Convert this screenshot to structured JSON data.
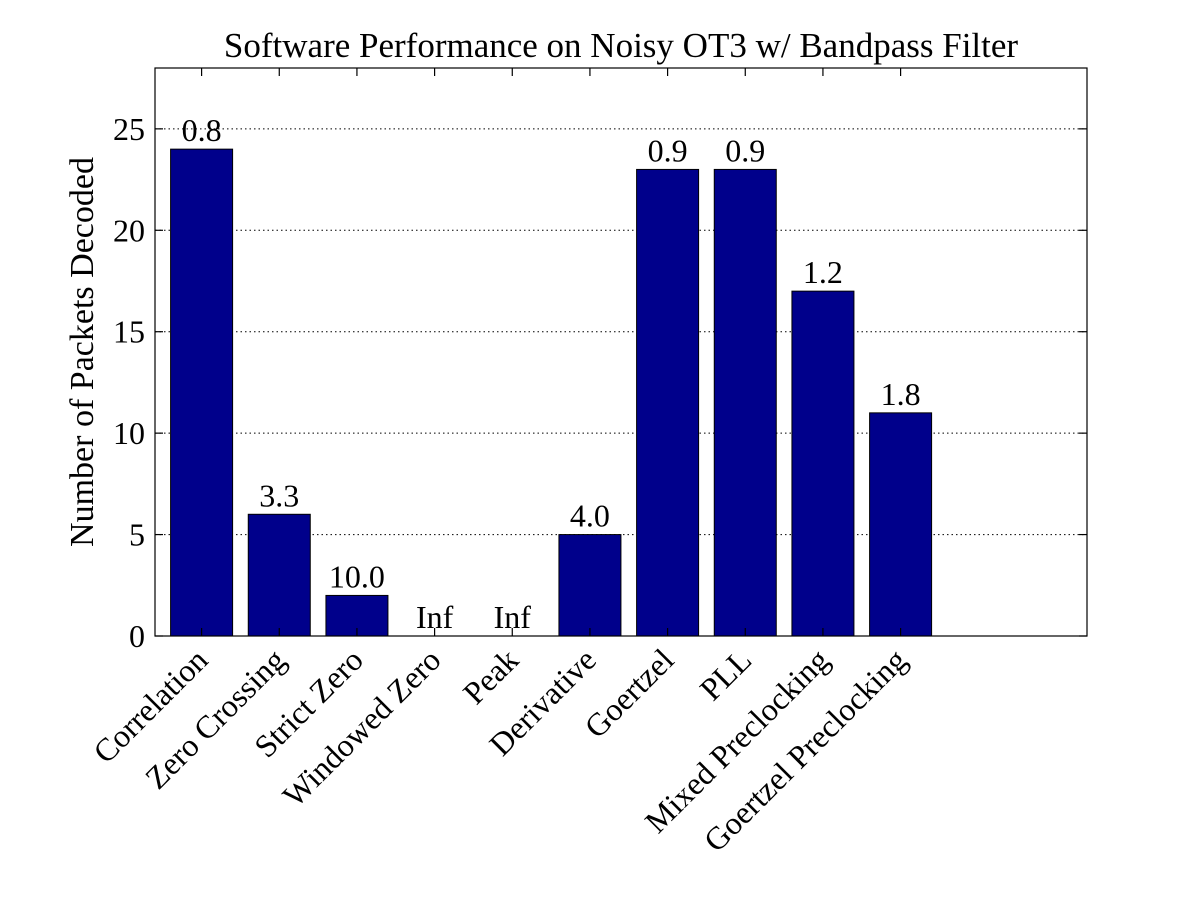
{
  "chart_data": {
    "type": "bar",
    "title": "Software Performance on Noisy OT3 w/ Bandpass Filter",
    "xlabel": "",
    "ylabel": "Number of Packets Decoded",
    "categories": [
      "Correlation",
      "Zero Crossing",
      "Strict Zero",
      "Windowed Zero",
      "Peak",
      "Derivative",
      "Goertzel",
      "PLL",
      "Mixed Preclocking",
      "Goertzel Preclocking"
    ],
    "values": [
      24,
      6,
      2,
      0,
      0,
      5,
      23,
      23,
      17,
      11
    ],
    "data_labels": [
      "0.8",
      "3.3",
      "10.0",
      "Inf",
      "Inf",
      "4.0",
      "0.9",
      "0.9",
      "1.2",
      "1.8"
    ],
    "ylim": [
      0,
      28
    ],
    "yticks": [
      0,
      5,
      10,
      15,
      20,
      25
    ],
    "xlim": [
      0.4,
      12.4
    ],
    "grid": "y-dotted",
    "bar_color": "#00008b",
    "bar_edge_color": "#000000"
  }
}
